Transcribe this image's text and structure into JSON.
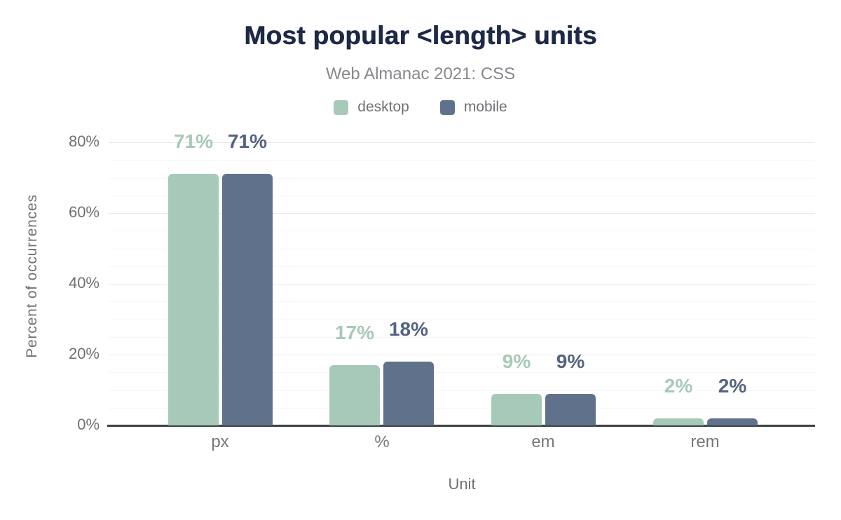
{
  "header": {
    "title": "Most popular <length> units",
    "subtitle": "Web Almanac 2021: CSS"
  },
  "chart_data": {
    "type": "bar",
    "title": "Most popular <length> units",
    "subtitle": "Web Almanac 2021: CSS",
    "categories": [
      "px",
      "%",
      "em",
      "rem"
    ],
    "series": [
      {
        "name": "desktop",
        "color": "#a7c9b8",
        "label_color": "#a7c9b8",
        "values": [
          71,
          17,
          9,
          2
        ]
      },
      {
        "name": "mobile",
        "color": "#60718c",
        "label_color": "#546480",
        "values": [
          71,
          18,
          9,
          2
        ]
      }
    ],
    "data_label_format": "{v}%",
    "xlabel": "Unit",
    "ylabel": "Percent of occurrences",
    "y_ticks": [
      0,
      20,
      40,
      60,
      80
    ],
    "y_tick_format": "{v}%",
    "ylim": [
      0,
      85
    ],
    "grid": {
      "major_interval": 20,
      "minor_interval": 5,
      "on": true
    },
    "legend_position": "top",
    "axis_color": "#3b4045",
    "background": "#ffffff"
  }
}
